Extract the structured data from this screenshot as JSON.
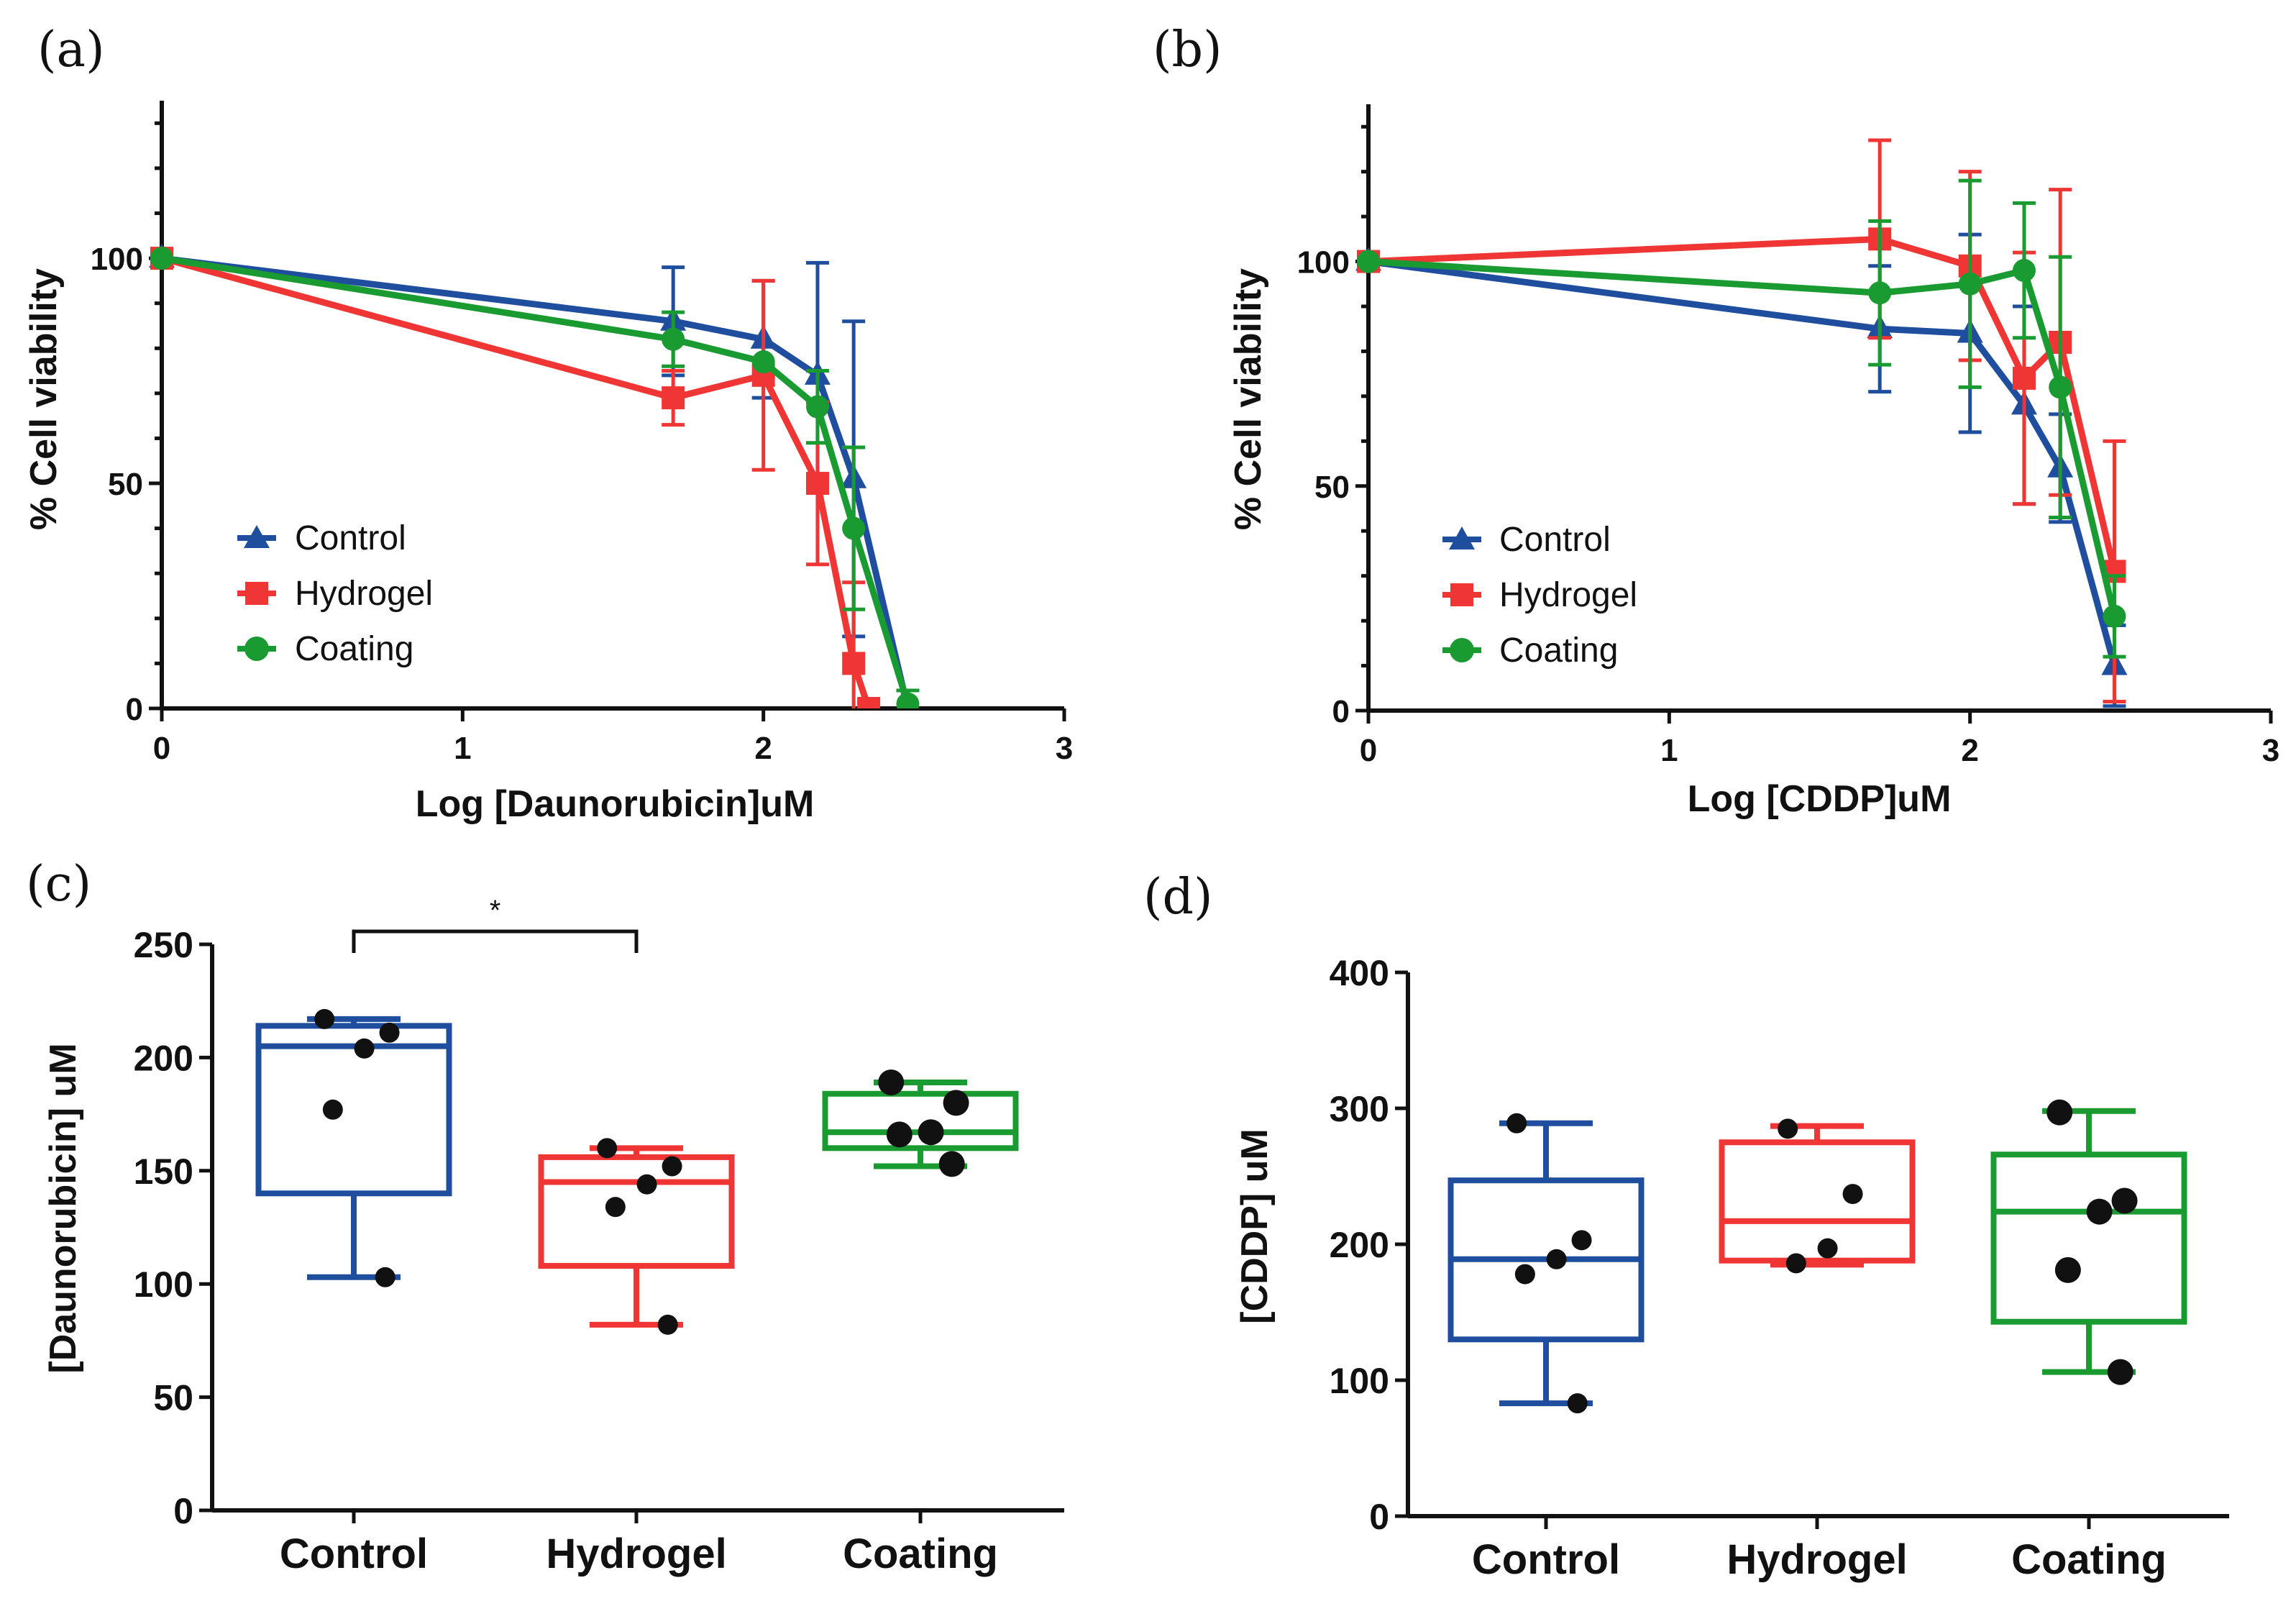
{
  "colors": {
    "control": "#1f4e9e",
    "hydrogel": "#f03535",
    "coating": "#1a9b32",
    "axis": "#111111"
  },
  "series_names": [
    "Control",
    "Hydrogel",
    "Coating"
  ],
  "chart_data": [
    {
      "panel": "(a)",
      "type": "line",
      "xlabel": "Log [Daunorubicin]uM",
      "ylabel": "% Cell viability",
      "xlim": [
        0,
        3
      ],
      "ylim": [
        0,
        135
      ],
      "xticks": [
        0,
        1,
        2,
        3
      ],
      "yticks": [
        0,
        50,
        100
      ],
      "legend_position": "lower-left",
      "series": [
        {
          "name": "Control",
          "marker": "triangle",
          "x": [
            0,
            1.7,
            2.0,
            2.18,
            2.3,
            2.48
          ],
          "y": [
            100,
            86,
            82,
            74,
            51,
            0
          ],
          "err": [
            0,
            12,
            13,
            25,
            35,
            0
          ]
        },
        {
          "name": "Hydrogel",
          "marker": "square",
          "x": [
            0,
            1.7,
            2.0,
            2.18,
            2.3,
            2.35
          ],
          "y": [
            100,
            69,
            74,
            50,
            10,
            0
          ],
          "err": [
            0,
            6,
            21,
            18,
            18,
            0
          ]
        },
        {
          "name": "Coating",
          "marker": "circle",
          "x": [
            0,
            1.7,
            2.0,
            2.18,
            2.3,
            2.48
          ],
          "y": [
            100,
            82,
            77,
            67,
            40,
            1
          ],
          "err": [
            0,
            6,
            0,
            8,
            18,
            3
          ]
        }
      ]
    },
    {
      "panel": "(b)",
      "type": "line",
      "xlabel": "Log [CDDP]uM",
      "ylabel": "% Cell viability",
      "xlim": [
        0,
        3
      ],
      "ylim": [
        0,
        135
      ],
      "xticks": [
        0,
        1,
        2,
        3
      ],
      "yticks": [
        0,
        50,
        100
      ],
      "legend_position": "lower-left",
      "series": [
        {
          "name": "Control",
          "marker": "triangle",
          "x": [
            0,
            1.7,
            2.0,
            2.18,
            2.3,
            2.48
          ],
          "y": [
            100,
            85,
            84,
            68,
            54,
            10
          ],
          "err": [
            0,
            14,
            22,
            22,
            12,
            9
          ]
        },
        {
          "name": "Hydrogel",
          "marker": "square",
          "x": [
            0,
            1.7,
            2.0,
            2.18,
            2.3,
            2.48
          ],
          "y": [
            100,
            105,
            99,
            74,
            82,
            31
          ],
          "err": [
            0,
            22,
            21,
            28,
            34,
            29
          ]
        },
        {
          "name": "Coating",
          "marker": "circle",
          "x": [
            0,
            1.7,
            2.0,
            2.18,
            2.3,
            2.48
          ],
          "y": [
            100,
            93,
            95,
            98,
            72,
            21
          ],
          "err": [
            0,
            16,
            23,
            15,
            29,
            9
          ]
        }
      ]
    },
    {
      "panel": "(c)",
      "type": "box",
      "ylabel": "[Daunorubicin] uM",
      "ylim": [
        0,
        250
      ],
      "yticks": [
        0,
        50,
        100,
        150,
        200,
        250
      ],
      "categories": [
        "Control",
        "Hydrogel",
        "Coating"
      ],
      "boxes": [
        {
          "min": 103,
          "q1": 140,
          "median": 205,
          "q3": 214,
          "max": 217,
          "points": [
            217,
            211,
            204,
            177,
            103
          ]
        },
        {
          "min": 82,
          "q1": 108,
          "median": 145,
          "q3": 156,
          "max": 160,
          "points": [
            160,
            152,
            144,
            134,
            82
          ]
        },
        {
          "min": 152,
          "q1": 160,
          "median": 167,
          "q3": 184,
          "max": 189,
          "points": [
            189,
            180,
            167,
            166,
            153
          ]
        }
      ],
      "significance": {
        "between": [
          "Control",
          "Hydrogel"
        ],
        "label": "*"
      }
    },
    {
      "panel": "(d)",
      "type": "box",
      "ylabel": "[CDDP] uM",
      "ylim": [
        0,
        400
      ],
      "yticks": [
        0,
        100,
        200,
        300,
        400
      ],
      "categories": [
        "Control",
        "Hydrogel",
        "Coating"
      ],
      "boxes": [
        {
          "min": 83,
          "q1": 130,
          "median": 189,
          "q3": 247,
          "max": 289,
          "points": [
            289,
            203,
            189,
            178,
            83
          ]
        },
        {
          "min": 185,
          "q1": 188,
          "median": 217,
          "q3": 275,
          "max": 287,
          "points": [
            285,
            237,
            197,
            186
          ]
        },
        {
          "min": 106,
          "q1": 143,
          "median": 224,
          "q3": 266,
          "max": 298,
          "points": [
            297,
            232,
            224,
            181,
            106
          ]
        }
      ]
    }
  ]
}
